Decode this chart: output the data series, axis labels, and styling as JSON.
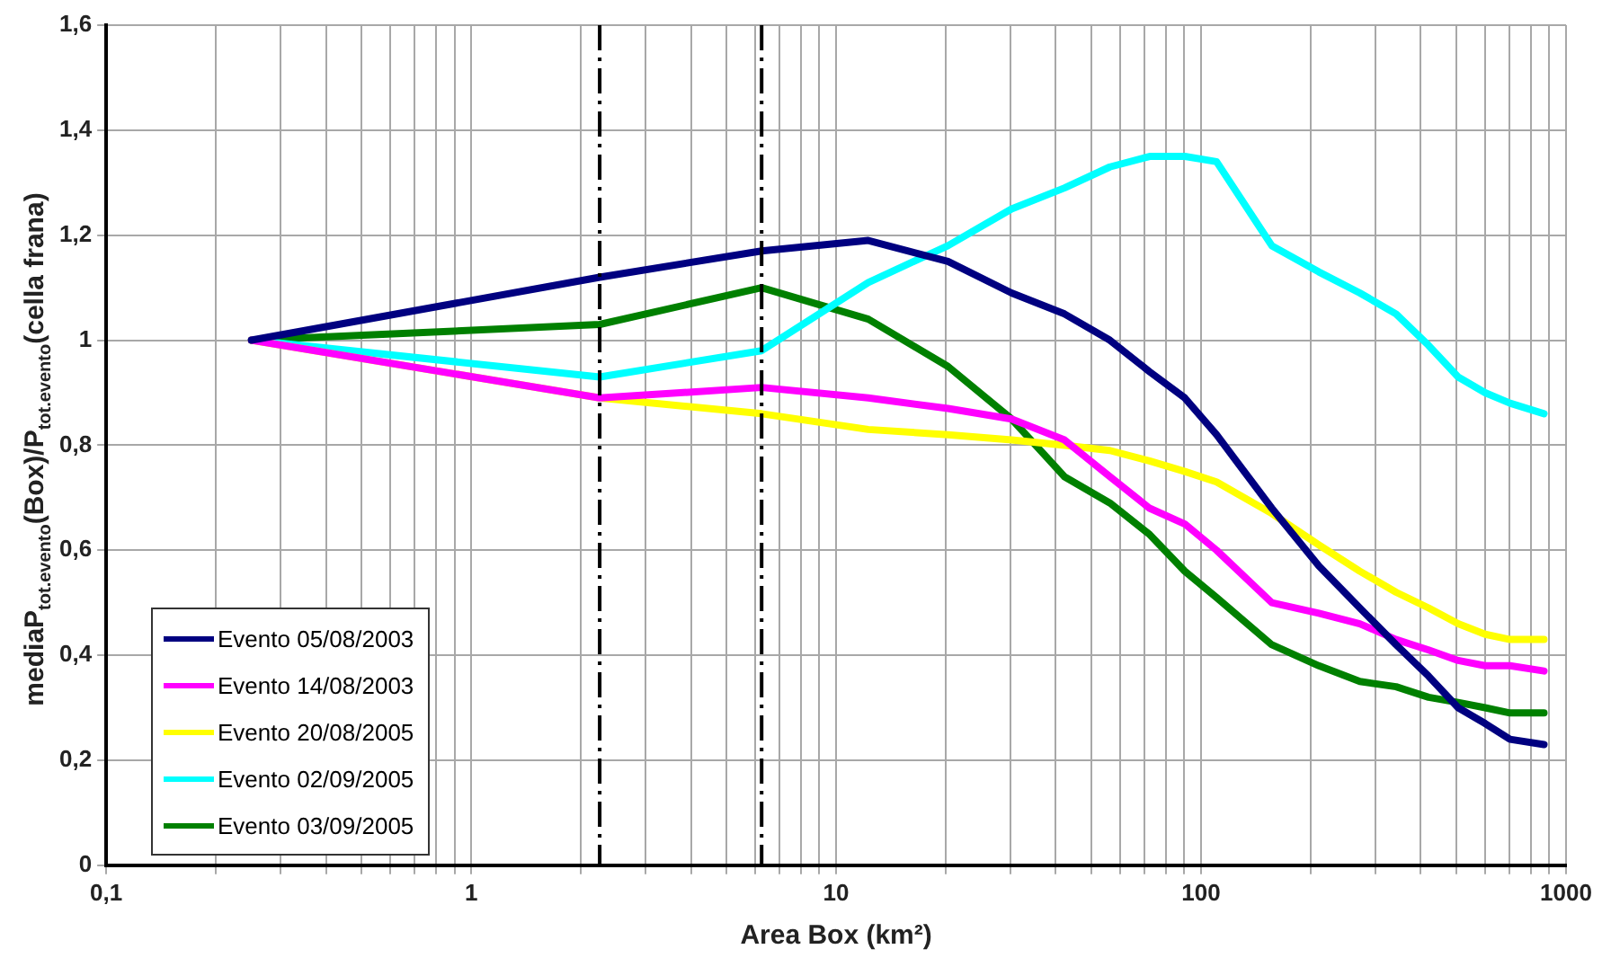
{
  "chart_data": {
    "type": "line",
    "xlabel": "Area Box (km²)",
    "ylabel": "mediaP$_{tot.evento}$(Box)/P$_{tot.evento}$(cella frana)",
    "x": [
      0.25,
      2.25,
      6.25,
      12.25,
      20.25,
      30.25,
      42.25,
      56.25,
      72.25,
      90.25,
      110.25,
      156.25,
      210.25,
      272.25,
      342.25,
      420.25,
      506.25,
      600.25,
      702.25,
      870.25
    ],
    "series": [
      {
        "name": "Evento 05/08/2003",
        "color": "#000080",
        "values": [
          1,
          1.12,
          1.17,
          1.19,
          1.15,
          1.09,
          1.05,
          1.0,
          0.94,
          0.89,
          0.82,
          0.68,
          0.57,
          0.49,
          0.42,
          0.36,
          0.3,
          0.27,
          0.24,
          0.23
        ]
      },
      {
        "name": "Evento 14/08/2003",
        "color": "#ff00ff",
        "values": [
          1,
          0.89,
          0.91,
          0.89,
          0.87,
          0.85,
          0.81,
          0.74,
          0.68,
          0.65,
          0.6,
          0.5,
          0.48,
          0.46,
          0.43,
          0.41,
          0.39,
          0.38,
          0.38,
          0.37
        ]
      },
      {
        "name": "Evento 20/08/2005",
        "color": "#ffff00",
        "values": [
          1,
          0.89,
          0.86,
          0.83,
          0.82,
          0.81,
          0.8,
          0.79,
          0.77,
          0.75,
          0.73,
          0.67,
          0.61,
          0.56,
          0.52,
          0.49,
          0.46,
          0.44,
          0.43,
          0.43
        ]
      },
      {
        "name": "Evento 02/09/2005",
        "color": "#00ffff",
        "values": [
          1,
          0.93,
          0.98,
          1.11,
          1.18,
          1.25,
          1.29,
          1.33,
          1.35,
          1.35,
          1.34,
          1.18,
          1.13,
          1.09,
          1.05,
          0.99,
          0.93,
          0.9,
          0.88,
          0.86
        ]
      },
      {
        "name": "Evento 03/09/2005",
        "color": "#008000",
        "values": [
          1,
          1.03,
          1.1,
          1.04,
          0.95,
          0.85,
          0.74,
          0.69,
          0.63,
          0.56,
          0.51,
          0.42,
          0.38,
          0.35,
          0.34,
          0.32,
          0.31,
          0.3,
          0.29,
          0.29
        ]
      }
    ],
    "log": "x",
    "xlim": [
      0.1,
      1000
    ],
    "xticks": [
      {
        "value": 0.1,
        "label": "0,1"
      },
      {
        "value": 0.2,
        "label": null
      },
      {
        "value": 0.3,
        "label": null
      },
      {
        "value": 0.4,
        "label": null
      },
      {
        "value": 0.5,
        "label": null
      },
      {
        "value": 0.6,
        "label": null
      },
      {
        "value": 0.7,
        "label": null
      },
      {
        "value": 0.8,
        "label": null
      },
      {
        "value": 0.9,
        "label": null
      },
      1,
      {
        "value": 2,
        "label": null
      },
      {
        "value": 3,
        "label": null
      },
      {
        "value": 4,
        "label": null
      },
      {
        "value": 5,
        "label": null
      },
      {
        "value": 6,
        "label": null
      },
      {
        "value": 7,
        "label": null
      },
      {
        "value": 8,
        "label": null
      },
      {
        "value": 9,
        "label": null
      },
      10,
      {
        "value": 20,
        "label": null
      },
      {
        "value": 30,
        "label": null
      },
      {
        "value": 40,
        "label": null
      },
      {
        "value": 50,
        "label": null
      },
      {
        "value": 60,
        "label": null
      },
      {
        "value": 70,
        "label": null
      },
      {
        "value": 80,
        "label": null
      },
      {
        "value": 90,
        "label": null
      },
      100,
      {
        "value": 200,
        "label": null
      },
      {
        "value": 300,
        "label": null
      },
      {
        "value": 400,
        "label": null
      },
      {
        "value": 500,
        "label": null
      },
      {
        "value": 600,
        "label": null
      },
      {
        "value": 700,
        "label": null
      },
      {
        "value": 800,
        "label": null
      },
      {
        "value": 900,
        "label": null
      },
      1000
    ],
    "ylim": [
      0,
      1.6
    ],
    "yticks": [
      0,
      {
        "value": 0.2,
        "label": "0,2"
      },
      {
        "value": 0.4,
        "label": "0,4"
      },
      {
        "value": 0.6,
        "label": "0,6"
      },
      {
        "value": 0.8,
        "label": "0,8"
      },
      1,
      {
        "value": 1.2,
        "label": "1,2"
      },
      {
        "value": 1.4,
        "label": "1,4"
      },
      {
        "value": 1.6,
        "label": "1,6"
      }
    ],
    "ref_lines": [
      {
        "axis": "x",
        "value": 2.25,
        "color": "#000000",
        "line_style": "dashed"
      },
      {
        "axis": "x",
        "value": 6.25,
        "color": "#000000",
        "line_style": "dashed"
      }
    ],
    "grid": true,
    "legend": "bottom left",
    "marker": "none",
    "line_style": "solid"
  }
}
